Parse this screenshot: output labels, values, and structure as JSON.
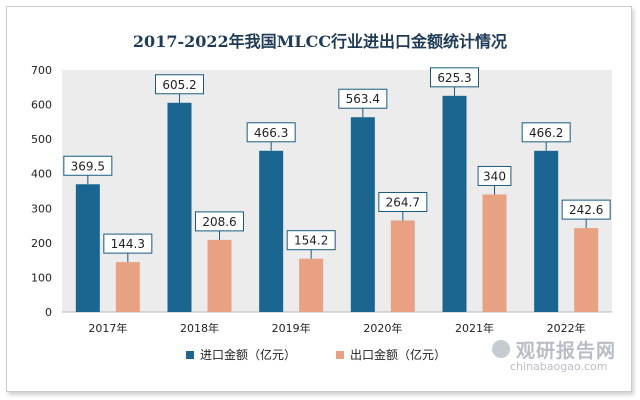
{
  "chart_data": {
    "type": "bar",
    "title": "2017-2022年我国MLCC行业进出口金额统计情况",
    "categories": [
      "2017年",
      "2018年",
      "2019年",
      "2020年",
      "2021年",
      "2022年"
    ],
    "series": [
      {
        "name": "进口金额（亿元）",
        "values": [
          369.5,
          605.2,
          466.3,
          563.4,
          625.3,
          466.2
        ],
        "labels": [
          "369.5",
          "605.2",
          "466.3",
          "563.4",
          "625.3",
          "466.2"
        ],
        "color": "#1a6690"
      },
      {
        "name": "出口金额（亿元）",
        "values": [
          144.3,
          208.6,
          154.2,
          264.7,
          340,
          242.6
        ],
        "labels": [
          "144.3",
          "208.6",
          "154.2",
          "264.7",
          "340",
          "242.6"
        ],
        "color": "#e8a283"
      }
    ],
    "ylim": [
      0,
      700
    ],
    "yticks": [
      "0",
      "100",
      "200",
      "300",
      "400",
      "500",
      "600",
      "700"
    ],
    "legend": "bottom",
    "grid": false
  },
  "watermark": {
    "cn": "观研报告网",
    "en": "chinabaogao.com"
  }
}
